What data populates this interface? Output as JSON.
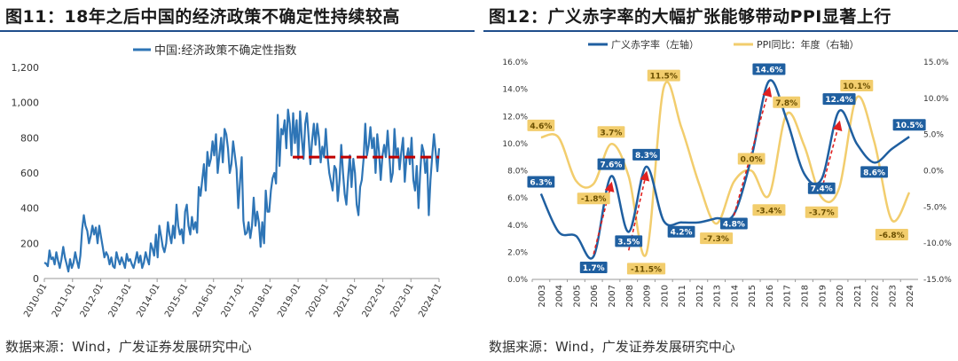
{
  "left": {
    "title": "图11：18年之后中国的经济政策不确定性持续较高",
    "source": "数据来源：Wind，广发证券发展研究中心",
    "chart_data": {
      "type": "line",
      "series": [
        {
          "name": "中国:经济政策不确定性指数",
          "color": "#2e75b6",
          "values": [
            90,
            85,
            70,
            160,
            110,
            120,
            80,
            150,
            100,
            60,
            110,
            180,
            120,
            80,
            40,
            110,
            60,
            90,
            150,
            100,
            60,
            130,
            280,
            360,
            300,
            270,
            200,
            240,
            300,
            250,
            290,
            200,
            300,
            240,
            180,
            120,
            150,
            130,
            80,
            120,
            70,
            60,
            150,
            110,
            80,
            120,
            90,
            60,
            140,
            100,
            110,
            80,
            60,
            100,
            150,
            90,
            130,
            60,
            90,
            150,
            110,
            80,
            200,
            170,
            130,
            250,
            120,
            300,
            240,
            180,
            150,
            200,
            320,
            250,
            200,
            300,
            230,
            420,
            300,
            250,
            280,
            200,
            380,
            420,
            300,
            250,
            350,
            280,
            320,
            260,
            520,
            470,
            560,
            650,
            500,
            720,
            640,
            680,
            780,
            700,
            820,
            600,
            700,
            800,
            660,
            850,
            820,
            740,
            600,
            650,
            780,
            700,
            620,
            400,
            550,
            690,
            330,
            250,
            260,
            320,
            230,
            300,
            460,
            300,
            380,
            320,
            180,
            320,
            200,
            500,
            380,
            380,
            500,
            570,
            600,
            540,
            930,
            640,
            850,
            820,
            900,
            740,
            960,
            880,
            700,
            940,
            770,
            900,
            680,
            950,
            800,
            680,
            880,
            940,
            800,
            650,
            780,
            880,
            760,
            880,
            800,
            660,
            750,
            690,
            850,
            700,
            600,
            550,
            500,
            640,
            620,
            440,
            560,
            760,
            600,
            480,
            420,
            580,
            700,
            520,
            680,
            600,
            420,
            360,
            520,
            560,
            680,
            880,
            700,
            760,
            860,
            740,
            800,
            600,
            820,
            720,
            560,
            700,
            760,
            690,
            840,
            700,
            550,
            600,
            850,
            700,
            740,
            620,
            720,
            800,
            550,
            680,
            740,
            650,
            800,
            560,
            500,
            640,
            400,
            600,
            760,
            720,
            600,
            680,
            360,
            560,
            700,
            820,
            720,
            610,
            740
          ]
        }
      ],
      "x_tick_labels": [
        "2010-01",
        "2011-01",
        "2012-01",
        "2013-01",
        "2014-01",
        "2015-01",
        "2016-01",
        "2017-01",
        "2018-01",
        "2019-01",
        "2020-01",
        "2021-01",
        "2022-01",
        "2023-01",
        "2024-01"
      ],
      "y_tick_labels": [
        "0",
        "200",
        "400",
        "600",
        "800",
        "1,000",
        "1,200"
      ],
      "ylim": [
        0,
        1200
      ],
      "reference_line": {
        "value": 690,
        "from": "2019-01",
        "to": "2024-01",
        "color": "#c00000"
      },
      "grid": false,
      "legend_position": "top"
    }
  },
  "right": {
    "title": "图12：广义赤字率的大幅扩张能够带动PPI显著上行",
    "source": "数据来源：Wind，广发证券发展研究中心",
    "chart_data": {
      "type": "line",
      "categories": [
        "2003",
        "2004",
        "2005",
        "2006",
        "2007",
        "2008",
        "2009",
        "2010",
        "2011",
        "2012",
        "2013",
        "2014",
        "2015",
        "2016",
        "2017",
        "2018",
        "2019",
        "2020",
        "2021",
        "2022",
        "2023",
        "2024"
      ],
      "series": [
        {
          "name": "广义赤字率（左轴）",
          "axis": "left",
          "color": "#1f5fa0",
          "values": [
            6.3,
            3.5,
            3.2,
            1.7,
            7.6,
            3.5,
            8.3,
            4.3,
            4.2,
            4.2,
            4.5,
            4.8,
            9.0,
            14.6,
            11.8,
            7.8,
            7.4,
            12.4,
            10.0,
            8.6,
            9.6,
            10.5
          ]
        },
        {
          "name": "PPI同比：年度（右轴）",
          "axis": "right",
          "color": "#f2cd6d",
          "values": [
            4.6,
            4.6,
            -1.4,
            -1.8,
            3.7,
            -0.8,
            -11.5,
            11.5,
            6.0,
            -1.7,
            -7.3,
            -1.5,
            0.0,
            -3.4,
            7.8,
            3.5,
            -3.7,
            -2.4,
            10.1,
            4.0,
            -6.8,
            -3.0
          ]
        }
      ],
      "left_axis": {
        "ylim": [
          0,
          16
        ],
        "tick_labels": [
          "0.0%",
          "2.0%",
          "4.0%",
          "6.0%",
          "8.0%",
          "10.0%",
          "12.0%",
          "14.0%",
          "16.0%"
        ]
      },
      "right_axis": {
        "ylim": [
          -15,
          15
        ],
        "tick_labels": [
          "-15.0%",
          "-10.0%",
          "-5.0%",
          "0.0%",
          "5.0%",
          "10.0%",
          "15.0%"
        ]
      },
      "data_labels": [
        {
          "series": 0,
          "index": 0,
          "text": "6.3%"
        },
        {
          "series": 0,
          "index": 3,
          "text": "1.7%"
        },
        {
          "series": 0,
          "index": 4,
          "text": "7.6%"
        },
        {
          "series": 0,
          "index": 5,
          "text": "3.5%"
        },
        {
          "series": 0,
          "index": 6,
          "text": "8.3%"
        },
        {
          "series": 0,
          "index": 8,
          "text": "4.2%"
        },
        {
          "series": 0,
          "index": 11,
          "text": "4.8%"
        },
        {
          "series": 0,
          "index": 13,
          "text": "14.6%"
        },
        {
          "series": 0,
          "index": 16,
          "text": "7.4%"
        },
        {
          "series": 0,
          "index": 17,
          "text": "12.4%"
        },
        {
          "series": 0,
          "index": 19,
          "text": "8.6%"
        },
        {
          "series": 0,
          "index": 21,
          "text": "10.5%"
        },
        {
          "series": 1,
          "index": 0,
          "text": "4.6%"
        },
        {
          "series": 1,
          "index": 3,
          "text": "-1.8%"
        },
        {
          "series": 1,
          "index": 4,
          "text": "3.7%"
        },
        {
          "series": 1,
          "index": 6,
          "text": "-11.5%"
        },
        {
          "series": 1,
          "index": 7,
          "text": "11.5%"
        },
        {
          "series": 1,
          "index": 10,
          "text": "-7.3%"
        },
        {
          "series": 1,
          "index": 12,
          "text": "0.0%"
        },
        {
          "series": 1,
          "index": 13,
          "text": "-3.4%"
        },
        {
          "series": 1,
          "index": 14,
          "text": "7.8%"
        },
        {
          "series": 1,
          "index": 16,
          "text": "-3.7%"
        },
        {
          "series": 1,
          "index": 18,
          "text": "10.1%"
        },
        {
          "series": 1,
          "index": 20,
          "text": "-6.8%"
        }
      ],
      "arrows": [
        {
          "from_index": 3,
          "from_value": -11.5,
          "to_index": 4,
          "to_value": 7.0
        },
        {
          "from_index": 5,
          "from_value": -11.0,
          "to_index": 6,
          "to_value": 7.8
        },
        {
          "from_index": 11,
          "from_value": 4.7,
          "to_index": 13,
          "to_value": 14.0
        },
        {
          "from_index": 16,
          "from_value": 6.6,
          "to_index": 17,
          "to_value": 11.5
        }
      ],
      "grid": false,
      "legend_position": "top"
    }
  }
}
